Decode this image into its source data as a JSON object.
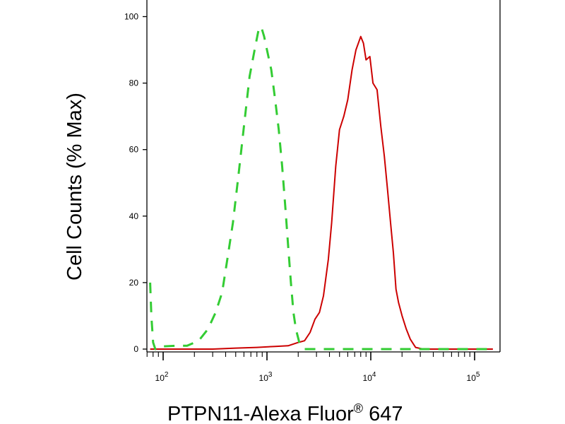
{
  "colors": {
    "background": "#ffffff",
    "axis": "#000000",
    "sample_line": "#cc0000",
    "control_line": "#33cc33"
  },
  "chart_data": {
    "type": "line",
    "title": "",
    "xlabel": "PTPN11-Alexa Fluor® 647",
    "xlabel_main": "PTPN11-Alexa Fluor",
    "xlabel_reg": "®",
    "xlabel_tail": " 647",
    "ylabel": "Cell Counts (% Max)",
    "xscale": "log",
    "xlim": [
      75,
      150000
    ],
    "ylim": [
      -2,
      105
    ],
    "grid": false,
    "legend": "none",
    "y_ticks": [
      {
        "value": 0,
        "label": "0"
      },
      {
        "value": 20,
        "label": "20"
      },
      {
        "value": 40,
        "label": "40"
      },
      {
        "value": 60,
        "label": "60"
      },
      {
        "value": 80,
        "label": "80"
      },
      {
        "value": 100,
        "label": "100"
      }
    ],
    "x_ticks": [
      {
        "value": 100,
        "base": "10",
        "exp": "2"
      },
      {
        "value": 1000,
        "base": "10",
        "exp": "3"
      },
      {
        "value": 10000,
        "base": "10",
        "exp": "4"
      },
      {
        "value": 100000,
        "base": "10",
        "exp": "5"
      }
    ],
    "series": [
      {
        "style": "solid",
        "color": "#cc0000",
        "points": [
          [
            75,
            0
          ],
          [
            300,
            0
          ],
          [
            500,
            0.3
          ],
          [
            800,
            0.5
          ],
          [
            1200,
            0.8
          ],
          [
            1600,
            1
          ],
          [
            2000,
            2
          ],
          [
            2300,
            2.5
          ],
          [
            2600,
            5
          ],
          [
            2900,
            9
          ],
          [
            3200,
            11
          ],
          [
            3500,
            16
          ],
          [
            3900,
            27
          ],
          [
            4200,
            38
          ],
          [
            4600,
            55
          ],
          [
            5000,
            66
          ],
          [
            5500,
            70
          ],
          [
            6000,
            75
          ],
          [
            6600,
            84
          ],
          [
            7200,
            90
          ],
          [
            8000,
            94
          ],
          [
            8500,
            92
          ],
          [
            9000,
            87
          ],
          [
            9800,
            88
          ],
          [
            10500,
            80
          ],
          [
            11500,
            78
          ],
          [
            12500,
            67
          ],
          [
            13500,
            58
          ],
          [
            14500,
            48
          ],
          [
            15500,
            38
          ],
          [
            16500,
            29
          ],
          [
            17500,
            18
          ],
          [
            18500,
            14
          ],
          [
            20000,
            10
          ],
          [
            22000,
            6
          ],
          [
            24000,
            3
          ],
          [
            27000,
            0.5
          ],
          [
            32000,
            0
          ],
          [
            150000,
            0
          ]
        ]
      },
      {
        "style": "dashed",
        "color": "#33cc33",
        "points": [
          [
            75,
            20
          ],
          [
            77,
            10
          ],
          [
            80,
            2
          ],
          [
            84,
            0
          ],
          [
            90,
            0
          ],
          [
            100,
            0.8
          ],
          [
            130,
            1
          ],
          [
            170,
            1
          ],
          [
            220,
            2.5
          ],
          [
            270,
            6
          ],
          [
            320,
            11
          ],
          [
            370,
            17
          ],
          [
            420,
            28
          ],
          [
            470,
            38
          ],
          [
            530,
            52
          ],
          [
            600,
            67
          ],
          [
            680,
            82
          ],
          [
            760,
            90
          ],
          [
            830,
            96
          ],
          [
            880,
            97
          ],
          [
            940,
            94
          ],
          [
            1000,
            90
          ],
          [
            1100,
            84
          ],
          [
            1200,
            75
          ],
          [
            1300,
            66
          ],
          [
            1400,
            55
          ],
          [
            1500,
            43
          ],
          [
            1600,
            31
          ],
          [
            1700,
            20
          ],
          [
            1800,
            11
          ],
          [
            1900,
            6
          ],
          [
            2050,
            2
          ],
          [
            2300,
            0
          ],
          [
            150000,
            0
          ]
        ]
      }
    ]
  }
}
